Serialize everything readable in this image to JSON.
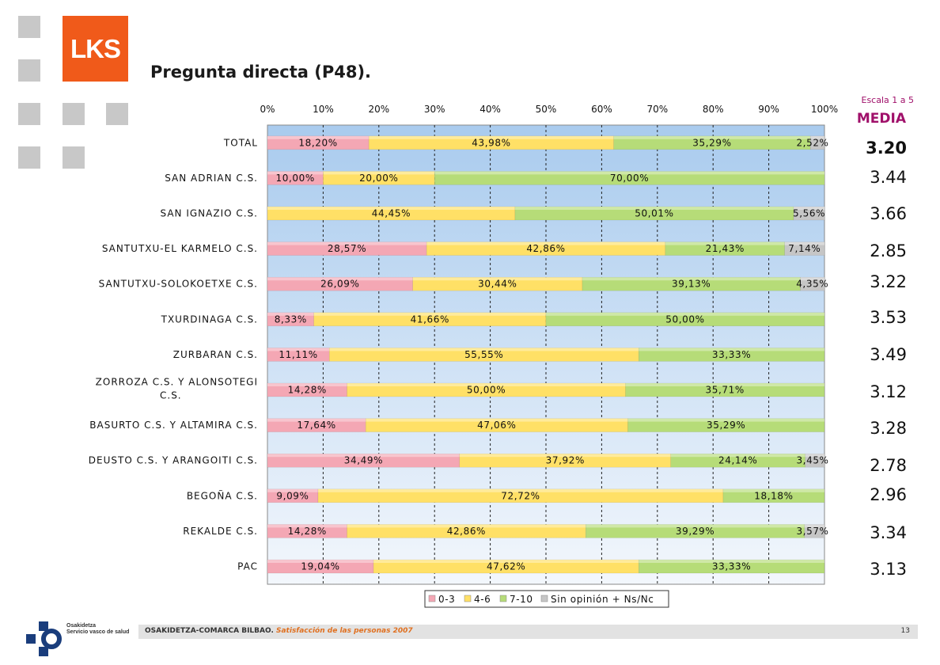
{
  "brand": {
    "logo_text": "LKS"
  },
  "page_title": "Pregunta directa (P48).",
  "side_panel": {
    "scale_note": "Escala 1 a 5",
    "header": "MEDIA"
  },
  "colors": {
    "c0_3": "#f4a7b4",
    "c4_6": "#ffe066",
    "c7_10": "#b6dc78",
    "sin": "#c6c6c6",
    "plot_top": "#a9cbee",
    "plot_bottom": "#f3f7fc",
    "logo": "#f05a1a",
    "accent": "#a0106a"
  },
  "chart_data": {
    "type": "bar",
    "orientation": "horizontal-stacked-100",
    "xlim": [
      0,
      100
    ],
    "x_ticks": [
      "0%",
      "10%",
      "20%",
      "30%",
      "40%",
      "50%",
      "60%",
      "70%",
      "80%",
      "90%",
      "100%"
    ],
    "categories": [
      "TOTAL",
      "SAN ADRIAN C.S.",
      "SAN IGNAZIO C.S.",
      "SANTUTXU-EL KARMELO C.S.",
      "SANTUTXU-SOLOKOETXE C.S.",
      "TXURDINAGA C.S.",
      "ZURBARAN C.S.",
      "ZORROZA C.S. Y ALONSOTEGI C.S.",
      "BASURTO C.S. Y ALTAMIRA C.S.",
      "DEUSTO C.S. Y ARANGOITI C.S.",
      "BEGOÑA C.S.",
      "REKALDE C.S.",
      "PAC"
    ],
    "series": [
      {
        "name": "0-3",
        "color": "#f4a7b4",
        "values": [
          18.2,
          10.0,
          0,
          28.57,
          26.09,
          8.33,
          11.11,
          14.28,
          17.64,
          34.49,
          9.09,
          14.28,
          19.04
        ],
        "labels": [
          "18,20%",
          "10,00%",
          "",
          "28,57%",
          "26,09%",
          "8,33%",
          "11,11%",
          "14,28%",
          "17,64%",
          "34,49%",
          "9,09%",
          "14,28%",
          "19,04%"
        ]
      },
      {
        "name": "4-6",
        "color": "#ffe066",
        "values": [
          43.98,
          20.0,
          44.45,
          42.86,
          30.44,
          41.66,
          55.55,
          50.0,
          47.06,
          37.92,
          72.72,
          42.86,
          47.62
        ],
        "labels": [
          "43,98%",
          "20,00%",
          "44,45%",
          "42,86%",
          "30,44%",
          "41,66%",
          "55,55%",
          "50,00%",
          "47,06%",
          "37,92%",
          "72,72%",
          "42,86%",
          "47,62%"
        ]
      },
      {
        "name": "7-10",
        "color": "#b6dc78",
        "values": [
          35.29,
          70.0,
          50.01,
          21.43,
          39.13,
          50.0,
          33.33,
          35.71,
          35.29,
          24.14,
          18.18,
          39.29,
          33.33
        ],
        "labels": [
          "35,29%",
          "70,00%",
          "50,01%",
          "21,43%",
          "39,13%",
          "50,00%",
          "33,33%",
          "35,71%",
          "35,29%",
          "24,14%",
          "18,18%",
          "39,29%",
          "33,33%"
        ]
      },
      {
        "name": "Sin opinión + Ns/Nc",
        "color": "#c6c6c6",
        "values": [
          2.52,
          0,
          5.56,
          7.14,
          4.35,
          0,
          0,
          0,
          0,
          3.45,
          0,
          3.57,
          0
        ],
        "labels": [
          "2,52%",
          "",
          "5,56%",
          "7,14%",
          "4,35%",
          "",
          "",
          "",
          "",
          "3,45%",
          "",
          "3,57%",
          ""
        ]
      }
    ],
    "legend_position": "bottom",
    "grid": true
  },
  "means": [
    "3.20",
    "3.44",
    "3.66",
    "2.85",
    "3.22",
    "3.53",
    "3.49",
    "3.12",
    "3.28",
    "2.78",
    "2.96",
    "3.34",
    "3.13"
  ],
  "footer": {
    "org": "OSAKIDETZA-COMARCA BILBAO.",
    "subtitle": "Satisfacción de las personas 2007",
    "page": "13"
  },
  "osakidetza": {
    "line1": "Osakidetza",
    "line2": "Servicio vasco de salud"
  }
}
